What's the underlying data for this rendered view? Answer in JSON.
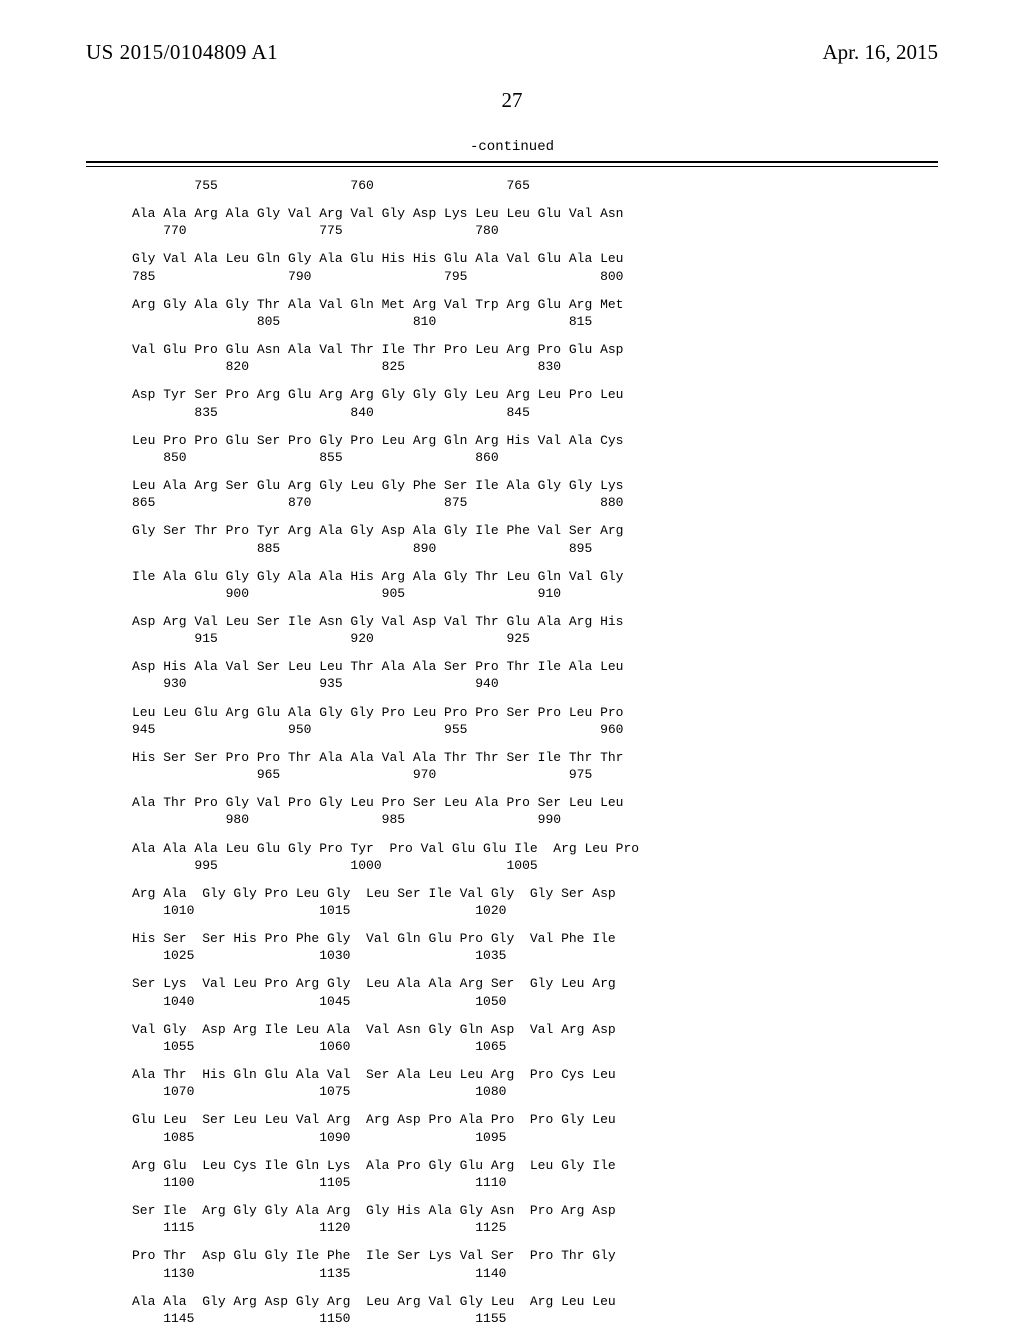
{
  "header": {
    "pub_number": "US 2015/0104809 A1",
    "pub_date": "Apr. 16, 2015",
    "page_number": "27",
    "continued": "-continued"
  },
  "sequence": [
    {
      "l1": "        755                 760                 765",
      "l2": ""
    },
    {
      "l1": "Ala Ala Arg Ala Gly Val Arg Val Gly Asp Lys Leu Leu Glu Val Asn",
      "l2": "    770                 775                 780"
    },
    {
      "l1": "Gly Val Ala Leu Gln Gly Ala Glu His His Glu Ala Val Glu Ala Leu",
      "l2": "785                 790                 795                 800"
    },
    {
      "l1": "Arg Gly Ala Gly Thr Ala Val Gln Met Arg Val Trp Arg Glu Arg Met",
      "l2": "                805                 810                 815"
    },
    {
      "l1": "Val Glu Pro Glu Asn Ala Val Thr Ile Thr Pro Leu Arg Pro Glu Asp",
      "l2": "            820                 825                 830"
    },
    {
      "l1": "Asp Tyr Ser Pro Arg Glu Arg Arg Gly Gly Gly Leu Arg Leu Pro Leu",
      "l2": "        835                 840                 845"
    },
    {
      "l1": "Leu Pro Pro Glu Ser Pro Gly Pro Leu Arg Gln Arg His Val Ala Cys",
      "l2": "    850                 855                 860"
    },
    {
      "l1": "Leu Ala Arg Ser Glu Arg Gly Leu Gly Phe Ser Ile Ala Gly Gly Lys",
      "l2": "865                 870                 875                 880"
    },
    {
      "l1": "Gly Ser Thr Pro Tyr Arg Ala Gly Asp Ala Gly Ile Phe Val Ser Arg",
      "l2": "                885                 890                 895"
    },
    {
      "l1": "Ile Ala Glu Gly Gly Ala Ala His Arg Ala Gly Thr Leu Gln Val Gly",
      "l2": "            900                 905                 910"
    },
    {
      "l1": "Asp Arg Val Leu Ser Ile Asn Gly Val Asp Val Thr Glu Ala Arg His",
      "l2": "        915                 920                 925"
    },
    {
      "l1": "Asp His Ala Val Ser Leu Leu Thr Ala Ala Ser Pro Thr Ile Ala Leu",
      "l2": "    930                 935                 940"
    },
    {
      "l1": "Leu Leu Glu Arg Glu Ala Gly Gly Pro Leu Pro Pro Ser Pro Leu Pro",
      "l2": "945                 950                 955                 960"
    },
    {
      "l1": "His Ser Ser Pro Pro Thr Ala Ala Val Ala Thr Thr Ser Ile Thr Thr",
      "l2": "                965                 970                 975"
    },
    {
      "l1": "Ala Thr Pro Gly Val Pro Gly Leu Pro Ser Leu Ala Pro Ser Leu Leu",
      "l2": "            980                 985                 990"
    },
    {
      "l1": "Ala Ala Ala Leu Glu Gly Pro Tyr  Pro Val Glu Glu Ile  Arg Leu Pro",
      "l2": "        995                 1000                1005"
    },
    {
      "l1": "Arg Ala  Gly Gly Pro Leu Gly  Leu Ser Ile Val Gly  Gly Ser Asp",
      "l2": "    1010                1015                1020"
    },
    {
      "l1": "His Ser  Ser His Pro Phe Gly  Val Gln Glu Pro Gly  Val Phe Ile",
      "l2": "    1025                1030                1035"
    },
    {
      "l1": "Ser Lys  Val Leu Pro Arg Gly  Leu Ala Ala Arg Ser  Gly Leu Arg",
      "l2": "    1040                1045                1050"
    },
    {
      "l1": "Val Gly  Asp Arg Ile Leu Ala  Val Asn Gly Gln Asp  Val Arg Asp",
      "l2": "    1055                1060                1065"
    },
    {
      "l1": "Ala Thr  His Gln Glu Ala Val  Ser Ala Leu Leu Arg  Pro Cys Leu",
      "l2": "    1070                1075                1080"
    },
    {
      "l1": "Glu Leu  Ser Leu Leu Val Arg  Arg Asp Pro Ala Pro  Pro Gly Leu",
      "l2": "    1085                1090                1095"
    },
    {
      "l1": "Arg Glu  Leu Cys Ile Gln Lys  Ala Pro Gly Glu Arg  Leu Gly Ile",
      "l2": "    1100                1105                1110"
    },
    {
      "l1": "Ser Ile  Arg Gly Gly Ala Arg  Gly His Ala Gly Asn  Pro Arg Asp",
      "l2": "    1115                1120                1125"
    },
    {
      "l1": "Pro Thr  Asp Glu Gly Ile Phe  Ile Ser Lys Val Ser  Pro Thr Gly",
      "l2": "    1130                1135                1140"
    },
    {
      "l1": "Ala Ala  Gly Arg Asp Gly Arg  Leu Arg Val Gly Leu  Arg Leu Leu",
      "l2": "    1145                1150                1155"
    }
  ]
}
